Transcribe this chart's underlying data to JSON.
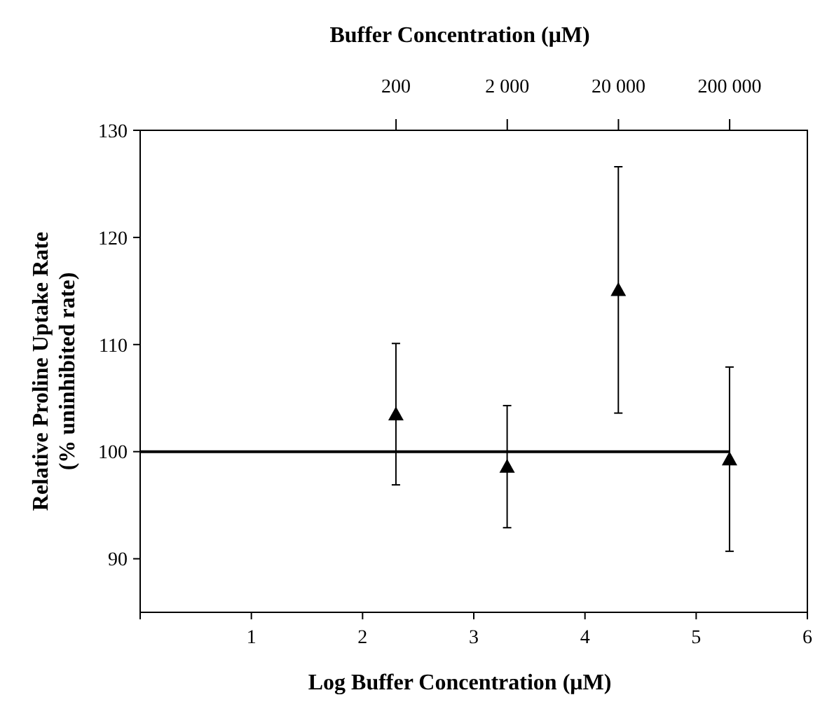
{
  "chart_data": {
    "type": "scatter",
    "xlabel": "Log Buffer Concentration (μM)",
    "ylabel": "Relative Proline Uptake Rate\n(% uninhibited rate)",
    "x2label": "Buffer Concentration (μM)",
    "xlim": [
      0,
      6
    ],
    "xticks": [
      {
        "value": 0,
        "label": null
      },
      1,
      2,
      3,
      4,
      5,
      6
    ],
    "ylim": [
      85,
      130
    ],
    "yticks": [
      90,
      100,
      110,
      120,
      130
    ],
    "x2lim": [
      1,
      1000000
    ],
    "x2ticks": [
      200,
      {
        "value": 2000,
        "label": "2 000"
      },
      {
        "value": 20000,
        "label": "20 000"
      },
      {
        "value": 200000,
        "label": "200 000"
      }
    ],
    "log": "x2",
    "series": [
      {
        "type": "line",
        "color": "#000000",
        "x": [
          0,
          5.3
        ],
        "values": [
          100,
          100
        ],
        "marker": "none"
      },
      {
        "color": "#000000",
        "marker": "triangle",
        "x": [
          2.3,
          3.3,
          4.3,
          5.3
        ],
        "values": [
          103.5,
          98.6,
          115.1,
          99.3
        ],
        "errors": [
          6.6,
          5.7,
          11.5,
          8.6
        ]
      }
    ]
  }
}
